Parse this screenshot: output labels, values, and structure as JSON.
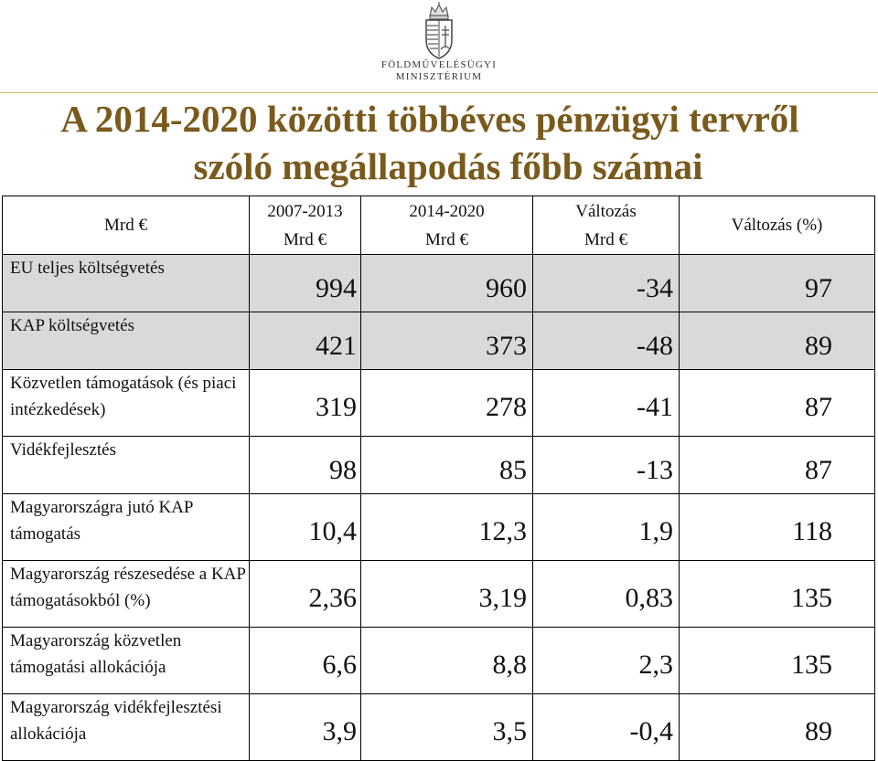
{
  "header": {
    "ministry_line1": "FÖLDMŰVELÉSÜGYI",
    "ministry_line2": "MINISZTÉRIUM"
  },
  "title": {
    "line1": "A 2014-2020 közötti többéves pénzügyi tervről",
    "line2": "szóló megállapodás főbb számai"
  },
  "table": {
    "headers": {
      "c0": "Mrd €",
      "c1_line1": "2007-2013",
      "c1_line2": "Mrd €",
      "c2_line1": "2014-2020",
      "c2_line2": "Mrd €",
      "c3_line1": "Változás",
      "c3_line2": "Mrd €",
      "c4": "Változás (%)"
    },
    "rows": [
      {
        "label": "EU teljes költségvetés",
        "v1": "994",
        "v2": "960",
        "v3": "-34",
        "v4": "97"
      },
      {
        "label": "KAP költségvetés",
        "v1": "421",
        "v2": "373",
        "v3": "-48",
        "v4": "89"
      },
      {
        "label": "Közvetlen támogatások (és piaci intézkedések)",
        "v1": "319",
        "v2": "278",
        "v3": "-41",
        "v4": "87"
      },
      {
        "label": "Vidékfejlesztés",
        "v1": "98",
        "v2": "85",
        "v3": "-13",
        "v4": "87"
      },
      {
        "label": "Magyarországra jutó KAP támogatás",
        "v1": "10,4",
        "v2": "12,3",
        "v3": "1,9",
        "v4": "118"
      },
      {
        "label": "Magyarország részesedése a KAP támogatásokból (%)",
        "v1": "2,36",
        "v2": "3,19",
        "v3": "0,83",
        "v4": "135"
      },
      {
        "label": "Magyarország közvetlen támogatási allokációja",
        "v1": "6,6",
        "v2": "8,8",
        "v3": "2,3",
        "v4": "135"
      },
      {
        "label": "Magyarország vidékfejlesztési allokációja",
        "v1": "3,9",
        "v2": "3,5",
        "v3": "-0,4",
        "v4": "89"
      }
    ]
  }
}
